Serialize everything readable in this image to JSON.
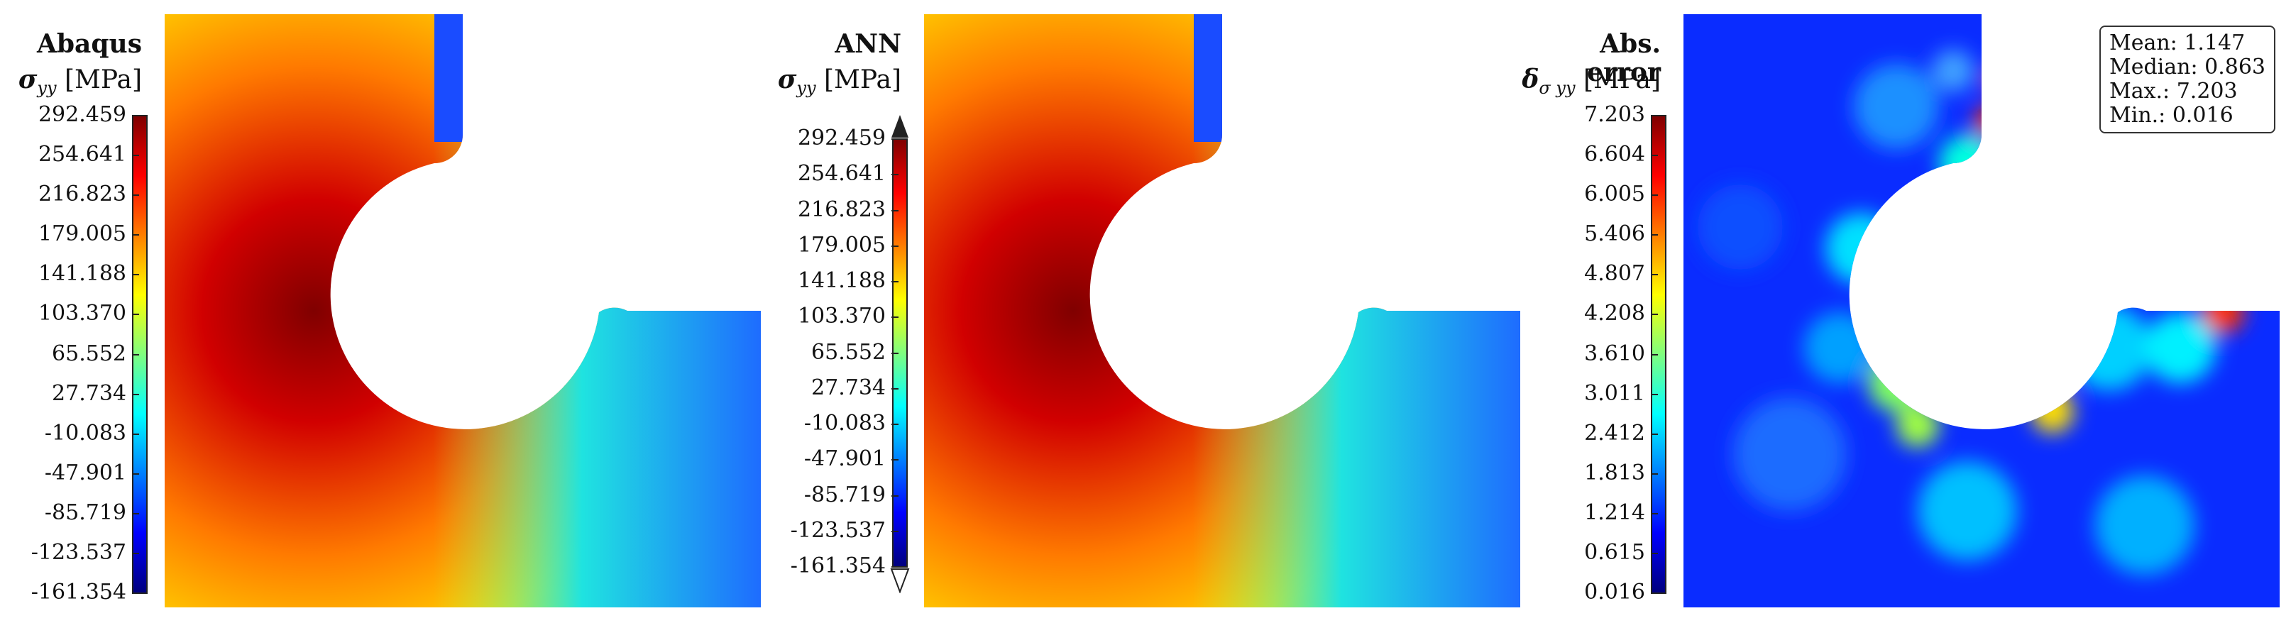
{
  "panels": [
    {
      "title": "Abaqus",
      "quantity_symbol": "σ",
      "quantity_sub": "yy",
      "quantity_unit": "[MPa]",
      "colorbar_ticks": [
        "292.459",
        "254.641",
        "216.823",
        "179.005",
        "141.188",
        "103.370",
        "65.552",
        "27.734",
        "-10.083",
        "-47.901",
        "-85.719",
        "-123.537",
        "-161.354"
      ],
      "extend_arrows": false
    },
    {
      "title": "ANN",
      "quantity_symbol": "σ",
      "quantity_sub": "yy",
      "quantity_unit": "[MPa]",
      "colorbar_ticks": [
        "292.459",
        "254.641",
        "216.823",
        "179.005",
        "141.188",
        "103.370",
        "65.552",
        "27.734",
        "-10.083",
        "-47.901",
        "-85.719",
        "-123.537",
        "-161.354"
      ],
      "extend_arrows": true
    },
    {
      "title": "Abs. error",
      "quantity_symbol": "δ",
      "quantity_sub": "σ yy",
      "quantity_unit": "[MPa]",
      "colorbar_ticks": [
        "7.203",
        "6.604",
        "6.005",
        "5.406",
        "4.807",
        "4.208",
        "3.610",
        "3.011",
        "2.412",
        "1.813",
        "1.214",
        "0.615",
        "0.016"
      ],
      "extend_arrows": false,
      "stats": [
        "Mean: 1.147",
        "Median: 0.863",
        "Max.: 7.203",
        "Min.: 0.016"
      ]
    }
  ],
  "chart_data": {
    "type": "heatmap",
    "colormap": "jet",
    "fields": [
      {
        "name": "Abaqus",
        "quantity": "σyy",
        "unit": "MPa",
        "range": [
          -161.354,
          292.459
        ]
      },
      {
        "name": "ANN",
        "quantity": "σyy",
        "unit": "MPa",
        "range": [
          -161.354,
          292.459
        ]
      },
      {
        "name": "Abs. error",
        "quantity": "δσyy",
        "unit": "MPa",
        "range": [
          0.016,
          7.203
        ],
        "mean": 1.147,
        "median": 0.863,
        "max": 7.203,
        "min": 0.016
      }
    ]
  },
  "colors": {
    "jet": [
      "#00007f",
      "#0000ff",
      "#007fff",
      "#00ffff",
      "#7fff7f",
      "#ffff00",
      "#ff7f00",
      "#ff0000",
      "#7f0000"
    ],
    "background": "#ffffff"
  }
}
